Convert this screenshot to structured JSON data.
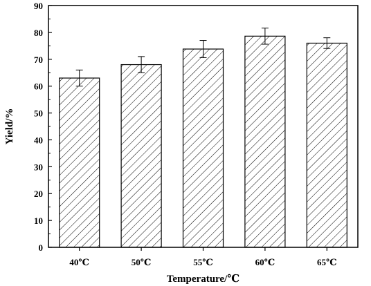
{
  "chart_data": {
    "type": "bar",
    "title": "",
    "xlabel": "Temperature/℃",
    "ylabel": "Yield/%",
    "categories": [
      "40℃",
      "50℃",
      "55℃",
      "60℃",
      "65℃"
    ],
    "series": [
      {
        "values": [
          63,
          68,
          73.8,
          78.6,
          76
        ],
        "error": [
          3,
          3,
          3.2,
          3,
          2
        ]
      }
    ],
    "ylim": [
      0,
      90
    ],
    "yticks": [
      0,
      10,
      20,
      30,
      40,
      50,
      60,
      70,
      80,
      90
    ],
    "grid": false,
    "legend": "none",
    "bar_fill": "diagonal-hatch",
    "colors": {
      "bar_stroke": "#000000",
      "hatch": "#000000",
      "background": "#ffffff"
    }
  }
}
